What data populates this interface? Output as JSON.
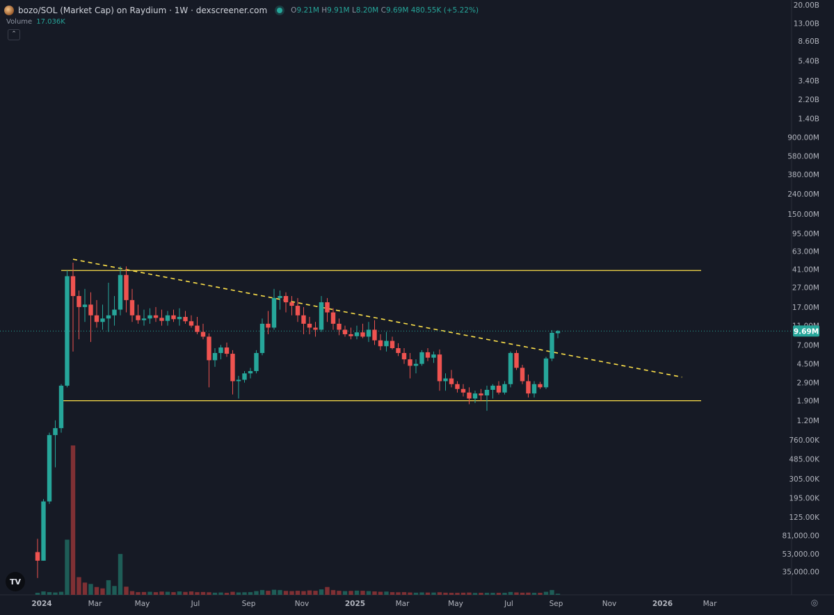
{
  "header": {
    "title": "bozo/SOL (Market Cap) on Raydium · 1W · dexscreener.com",
    "ohlc": {
      "o_label": "O",
      "o_value": "9.21M",
      "h_label": "H",
      "h_value": "9.91M",
      "l_label": "L",
      "l_value": "8.20M",
      "c_label": "C",
      "c_value": "9.69M",
      "change": "480.55K (+5.22%)"
    },
    "volume_label": "Volume",
    "volume_value": "17.036K",
    "collapse_glyph": "⌃"
  },
  "logo_text": "TV",
  "colors": {
    "background": "#161a25",
    "up": "#26a69a",
    "down": "#ef5350",
    "up_volume": "#1e5d57",
    "down_volume": "#7f3034",
    "level_line": "#ffe24a",
    "price_badge": "#26a69a"
  },
  "chart_data": {
    "type": "candlestick",
    "title": "bozo/SOL (Market Cap) on Raydium · 1W · dexscreener.com",
    "y_scale": "log",
    "ylim": [
      28000,
      21000000000
    ],
    "y_ticks": [
      "20.00B",
      "13.00B",
      "8.60B",
      "5.40B",
      "3.40B",
      "2.20B",
      "1.40B",
      "900.00M",
      "580.00M",
      "380.00M",
      "240.00M",
      "150.00M",
      "95.00M",
      "63.00M",
      "41.00M",
      "27.00M",
      "17.00M",
      "11.00M",
      "7.00M",
      "4.50M",
      "2.90M",
      "1.90M",
      "1.20M",
      "760.00K",
      "485.00K",
      "305.00K",
      "195.00K",
      "125.00K",
      "81,000.00",
      "53,000.00",
      "35,000.00"
    ],
    "x_ticks": [
      "2024",
      "Mar",
      "May",
      "Jul",
      "Sep",
      "Nov",
      "2025",
      "Mar",
      "May",
      "Jul",
      "Sep",
      "Nov",
      "2026",
      "Mar"
    ],
    "last_price_label": "9.69M",
    "last_price": 9690000,
    "start_week": "2024-01-01",
    "candles": [
      [
        55000,
        75000,
        30000,
        45000
      ],
      [
        45000,
        190000,
        45000,
        180000
      ],
      [
        180000,
        900000,
        170000,
        850000
      ],
      [
        850000,
        1200000,
        400000,
        1000000
      ],
      [
        1000000,
        2800000,
        900000,
        2700000
      ],
      [
        2700000,
        40000000,
        2600000,
        35000000
      ],
      [
        35000000,
        48000000,
        6000000,
        22000000
      ],
      [
        22000000,
        25000000,
        8000000,
        17000000
      ],
      [
        17000000,
        26000000,
        12000000,
        18000000
      ],
      [
        18000000,
        24000000,
        7500000,
        14000000
      ],
      [
        14000000,
        20000000,
        10500000,
        12000000
      ],
      [
        12000000,
        18000000,
        10000000,
        13000000
      ],
      [
        13000000,
        30000000,
        9500000,
        14000000
      ],
      [
        14000000,
        22000000,
        11000000,
        16000000
      ],
      [
        16000000,
        44000000,
        14000000,
        36000000
      ],
      [
        36000000,
        44000000,
        15000000,
        20000000
      ],
      [
        20000000,
        26000000,
        12000000,
        14000000
      ],
      [
        14000000,
        18000000,
        11500000,
        12500000
      ],
      [
        12500000,
        16000000,
        11000000,
        13000000
      ],
      [
        13000000,
        16500000,
        11500000,
        14000000
      ],
      [
        14000000,
        17000000,
        12000000,
        13200000
      ],
      [
        13200000,
        16000000,
        11000000,
        12300000
      ],
      [
        12300000,
        15500000,
        11000000,
        14000000
      ],
      [
        14000000,
        16000000,
        12000000,
        12800000
      ],
      [
        12800000,
        16500000,
        11000000,
        13500000
      ],
      [
        13500000,
        15500000,
        11500000,
        12200000
      ],
      [
        12200000,
        14000000,
        10500000,
        11000000
      ],
      [
        11000000,
        13500000,
        9000000,
        9500000
      ],
      [
        9500000,
        11500000,
        8000000,
        8500000
      ],
      [
        8500000,
        9200000,
        2600000,
        4900000
      ],
      [
        4900000,
        6500000,
        4200000,
        5800000
      ],
      [
        5800000,
        7000000,
        5000000,
        6600000
      ],
      [
        6600000,
        7400000,
        5300000,
        5700000
      ],
      [
        5700000,
        6200000,
        2200000,
        3000000
      ],
      [
        3000000,
        3400000,
        2000000,
        3100000
      ],
      [
        3100000,
        3800000,
        2900000,
        3600000
      ],
      [
        3600000,
        4100000,
        3200000,
        3800000
      ],
      [
        3800000,
        6200000,
        3600000,
        5800000
      ],
      [
        5800000,
        13000000,
        5500000,
        11500000
      ],
      [
        11500000,
        15500000,
        9000000,
        10500000
      ],
      [
        10500000,
        26000000,
        10000000,
        21000000
      ],
      [
        21000000,
        25000000,
        16000000,
        22000000
      ],
      [
        22000000,
        24000000,
        15000000,
        19000000
      ],
      [
        19000000,
        22000000,
        14000000,
        17500000
      ],
      [
        17500000,
        21000000,
        12000000,
        14000000
      ],
      [
        14000000,
        17000000,
        9000000,
        11500000
      ],
      [
        11500000,
        13500000,
        9000000,
        10500000
      ],
      [
        10500000,
        12000000,
        8500000,
        10000000
      ],
      [
        10000000,
        22000000,
        9500000,
        19000000
      ],
      [
        19000000,
        21000000,
        12000000,
        15000000
      ],
      [
        15000000,
        16500000,
        10000000,
        11500000
      ],
      [
        11500000,
        13000000,
        8800000,
        10000000
      ],
      [
        10000000,
        11000000,
        8500000,
        9000000
      ],
      [
        9000000,
        10500000,
        8000000,
        8600000
      ],
      [
        8600000,
        11000000,
        8000000,
        9400000
      ],
      [
        9400000,
        11500000,
        8200000,
        8500000
      ],
      [
        8500000,
        12000000,
        7500000,
        10000000
      ],
      [
        10000000,
        12500000,
        7000000,
        7800000
      ],
      [
        7800000,
        9000000,
        6200000,
        6800000
      ],
      [
        6800000,
        9500000,
        6000000,
        7700000
      ],
      [
        7700000,
        8500000,
        6300000,
        6500000
      ],
      [
        6500000,
        7300000,
        5400000,
        5800000
      ],
      [
        5800000,
        6500000,
        4500000,
        5000000
      ],
      [
        5000000,
        5800000,
        3200000,
        4300000
      ],
      [
        4300000,
        5000000,
        3600000,
        4500000
      ],
      [
        4500000,
        6200000,
        4300000,
        5900000
      ],
      [
        5900000,
        6500000,
        4800000,
        5200000
      ],
      [
        5200000,
        6000000,
        4600000,
        5600000
      ],
      [
        5600000,
        6300000,
        2400000,
        3000000
      ],
      [
        3000000,
        3600000,
        2400000,
        3200000
      ],
      [
        3200000,
        3900000,
        2600000,
        2800000
      ],
      [
        2800000,
        3000000,
        2300000,
        2500000
      ],
      [
        2500000,
        2800000,
        2100000,
        2300000
      ],
      [
        2300000,
        2600000,
        1750000,
        2000000
      ],
      [
        2000000,
        2400000,
        1800000,
        2250000
      ],
      [
        2250000,
        2500000,
        1900000,
        2150000
      ],
      [
        2150000,
        2700000,
        1500000,
        2450000
      ],
      [
        2450000,
        2800000,
        2000000,
        2700000
      ],
      [
        2700000,
        3000000,
        2200000,
        2300000
      ],
      [
        2300000,
        3000000,
        2200000,
        2800000
      ],
      [
        2800000,
        6000000,
        2600000,
        5800000
      ],
      [
        5800000,
        6200000,
        3900000,
        4100000
      ],
      [
        4100000,
        4400000,
        2800000,
        3000000
      ],
      [
        3000000,
        3500000,
        2050000,
        2250000
      ],
      [
        2250000,
        3000000,
        2050000,
        2800000
      ],
      [
        2800000,
        2950000,
        2500000,
        2600000
      ],
      [
        2600000,
        5300000,
        2500000,
        5100000
      ],
      [
        5100000,
        9900000,
        4800000,
        9300000
      ],
      [
        9210000,
        9910000,
        8200000,
        9690000
      ]
    ],
    "volume_scale": 760000,
    "volumes": [
      [
        30,
        1
      ],
      [
        50,
        1
      ],
      [
        40,
        1
      ],
      [
        35,
        1
      ],
      [
        45,
        1
      ],
      [
        810,
        1
      ],
      [
        2200,
        0
      ],
      [
        260,
        0
      ],
      [
        180,
        0
      ],
      [
        160,
        1
      ],
      [
        115,
        0
      ],
      [
        95,
        0
      ],
      [
        215,
        1
      ],
      [
        130,
        1
      ],
      [
        600,
        1
      ],
      [
        120,
        0
      ],
      [
        55,
        0
      ],
      [
        40,
        0
      ],
      [
        42,
        0
      ],
      [
        45,
        1
      ],
      [
        40,
        0
      ],
      [
        48,
        0
      ],
      [
        45,
        1
      ],
      [
        40,
        0
      ],
      [
        50,
        1
      ],
      [
        43,
        0
      ],
      [
        50,
        0
      ],
      [
        40,
        0
      ],
      [
        42,
        0
      ],
      [
        38,
        0
      ],
      [
        32,
        1
      ],
      [
        35,
        1
      ],
      [
        30,
        0
      ],
      [
        45,
        0
      ],
      [
        36,
        1
      ],
      [
        38,
        1
      ],
      [
        40,
        1
      ],
      [
        55,
        1
      ],
      [
        70,
        1
      ],
      [
        60,
        0
      ],
      [
        75,
        1
      ],
      [
        70,
        1
      ],
      [
        58,
        0
      ],
      [
        55,
        0
      ],
      [
        60,
        0
      ],
      [
        55,
        0
      ],
      [
        65,
        0
      ],
      [
        60,
        0
      ],
      [
        80,
        1
      ],
      [
        115,
        0
      ],
      [
        70,
        0
      ],
      [
        60,
        0
      ],
      [
        55,
        1
      ],
      [
        58,
        0
      ],
      [
        62,
        1
      ],
      [
        60,
        0
      ],
      [
        55,
        1
      ],
      [
        50,
        0
      ],
      [
        45,
        0
      ],
      [
        48,
        1
      ],
      [
        40,
        0
      ],
      [
        38,
        0
      ],
      [
        40,
        0
      ],
      [
        35,
        0
      ],
      [
        32,
        1
      ],
      [
        36,
        1
      ],
      [
        34,
        0
      ],
      [
        34,
        1
      ],
      [
        38,
        0
      ],
      [
        32,
        0
      ],
      [
        30,
        0
      ],
      [
        30,
        0
      ],
      [
        32,
        0
      ],
      [
        34,
        0
      ],
      [
        28,
        1
      ],
      [
        30,
        0
      ],
      [
        30,
        1
      ],
      [
        30,
        1
      ],
      [
        30,
        0
      ],
      [
        30,
        1
      ],
      [
        42,
        1
      ],
      [
        36,
        0
      ],
      [
        32,
        0
      ],
      [
        33,
        0
      ],
      [
        30,
        1
      ],
      [
        30,
        0
      ],
      [
        45,
        1
      ],
      [
        70,
        1
      ],
      [
        17,
        1
      ]
    ],
    "horizontal_levels": [
      40000000,
      1900000
    ],
    "trendline": {
      "from_week": 6,
      "from_value": 52000000,
      "to_week": 109,
      "to_value": 3300000
    }
  }
}
